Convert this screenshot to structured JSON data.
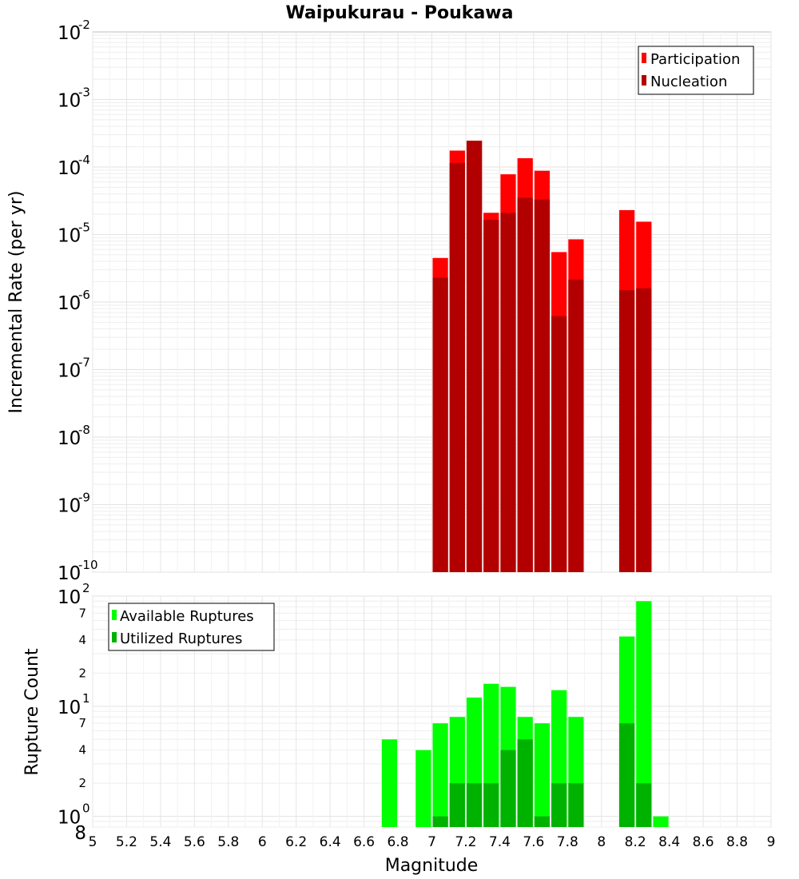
{
  "chart_data": [
    {
      "type": "bar",
      "title": "Waipukurau - Poukawa",
      "xlabel": "",
      "ylabel": "Incremental Rate (per yr)",
      "xlim": [
        5,
        9
      ],
      "ylim": [
        1e-10,
        0.01
      ],
      "yscale": "log",
      "grid": true,
      "legend_position": "top-right",
      "y_ticks": [
        {
          "base": "10",
          "exp": "-2"
        },
        {
          "base": "10",
          "exp": "-3"
        },
        {
          "base": "10",
          "exp": "-4"
        },
        {
          "base": "10",
          "exp": "-5"
        },
        {
          "base": "10",
          "exp": "-6"
        },
        {
          "base": "10",
          "exp": "-7"
        },
        {
          "base": "10",
          "exp": "-8"
        },
        {
          "base": "10",
          "exp": "-9"
        },
        {
          "base": "10",
          "exp": "-10"
        }
      ],
      "series": [
        {
          "name": "Participation",
          "color": "#ff0000",
          "points": [
            {
              "x": 7.05,
              "y": 4.5e-06
            },
            {
              "x": 7.15,
              "y": 0.000175
            },
            {
              "x": 7.25,
              "y": 0.000245
            },
            {
              "x": 7.35,
              "y": 2.1e-05
            },
            {
              "x": 7.45,
              "y": 7.8e-05
            },
            {
              "x": 7.55,
              "y": 0.000135
            },
            {
              "x": 7.65,
              "y": 8.8e-05
            },
            {
              "x": 7.75,
              "y": 5.5e-06
            },
            {
              "x": 7.85,
              "y": 8.5e-06
            },
            {
              "x": 8.15,
              "y": 2.3e-05
            },
            {
              "x": 8.25,
              "y": 1.55e-05
            }
          ]
        },
        {
          "name": "Nucleation",
          "color": "#b20000",
          "points": [
            {
              "x": 7.05,
              "y": 2.3e-06
            },
            {
              "x": 7.15,
              "y": 0.000115
            },
            {
              "x": 7.25,
              "y": 0.000245
            },
            {
              "x": 7.35,
              "y": 1.65e-05
            },
            {
              "x": 7.45,
              "y": 2.1e-05
            },
            {
              "x": 7.55,
              "y": 3.5e-05
            },
            {
              "x": 7.65,
              "y": 3.3e-05
            },
            {
              "x": 7.75,
              "y": 6.2e-07
            },
            {
              "x": 7.85,
              "y": 2.15e-06
            },
            {
              "x": 8.15,
              "y": 1.5e-06
            },
            {
              "x": 8.25,
              "y": 1.6e-06
            }
          ]
        }
      ]
    },
    {
      "type": "bar",
      "title": "",
      "xlabel": "Magnitude",
      "ylabel": "Rupture Count",
      "xlim": [
        5,
        9
      ],
      "ylim": [
        0.8,
        100
      ],
      "yscale": "log",
      "grid": true,
      "legend_position": "top-left",
      "x_ticks": [
        "5",
        "5.2",
        "5.4",
        "5.6",
        "5.8",
        "6",
        "6.2",
        "6.4",
        "6.6",
        "6.8",
        "7",
        "7.2",
        "7.4",
        "7.6",
        "7.8",
        "8",
        "8.2",
        "8.4",
        "8.6",
        "8.8",
        "9"
      ],
      "y_ticks": [
        {
          "base": "10",
          "exp": "2"
        },
        {
          "base": "10",
          "exp": "1"
        },
        {
          "base": "10",
          "exp": "0"
        }
      ],
      "y_minor_ticks": [
        "7",
        "4",
        "2",
        "7",
        "4",
        "2",
        "8"
      ],
      "series": [
        {
          "name": "Available Ruptures",
          "color": "#00ff00",
          "points": [
            {
              "x": 6.75,
              "y": 5
            },
            {
              "x": 6.95,
              "y": 4
            },
            {
              "x": 7.05,
              "y": 7
            },
            {
              "x": 7.15,
              "y": 8
            },
            {
              "x": 7.25,
              "y": 12
            },
            {
              "x": 7.35,
              "y": 16
            },
            {
              "x": 7.45,
              "y": 15
            },
            {
              "x": 7.55,
              "y": 8
            },
            {
              "x": 7.65,
              "y": 7
            },
            {
              "x": 7.75,
              "y": 14
            },
            {
              "x": 7.85,
              "y": 8
            },
            {
              "x": 8.15,
              "y": 43
            },
            {
              "x": 8.25,
              "y": 90
            },
            {
              "x": 8.35,
              "y": 1
            }
          ]
        },
        {
          "name": "Utilized Ruptures",
          "color": "#00b200",
          "points": [
            {
              "x": 7.05,
              "y": 1
            },
            {
              "x": 7.15,
              "y": 2
            },
            {
              "x": 7.25,
              "y": 2
            },
            {
              "x": 7.35,
              "y": 2
            },
            {
              "x": 7.45,
              "y": 4
            },
            {
              "x": 7.55,
              "y": 5
            },
            {
              "x": 7.65,
              "y": 1
            },
            {
              "x": 7.75,
              "y": 2
            },
            {
              "x": 7.85,
              "y": 2
            },
            {
              "x": 8.15,
              "y": 7
            },
            {
              "x": 8.25,
              "y": 2
            }
          ]
        }
      ]
    }
  ]
}
